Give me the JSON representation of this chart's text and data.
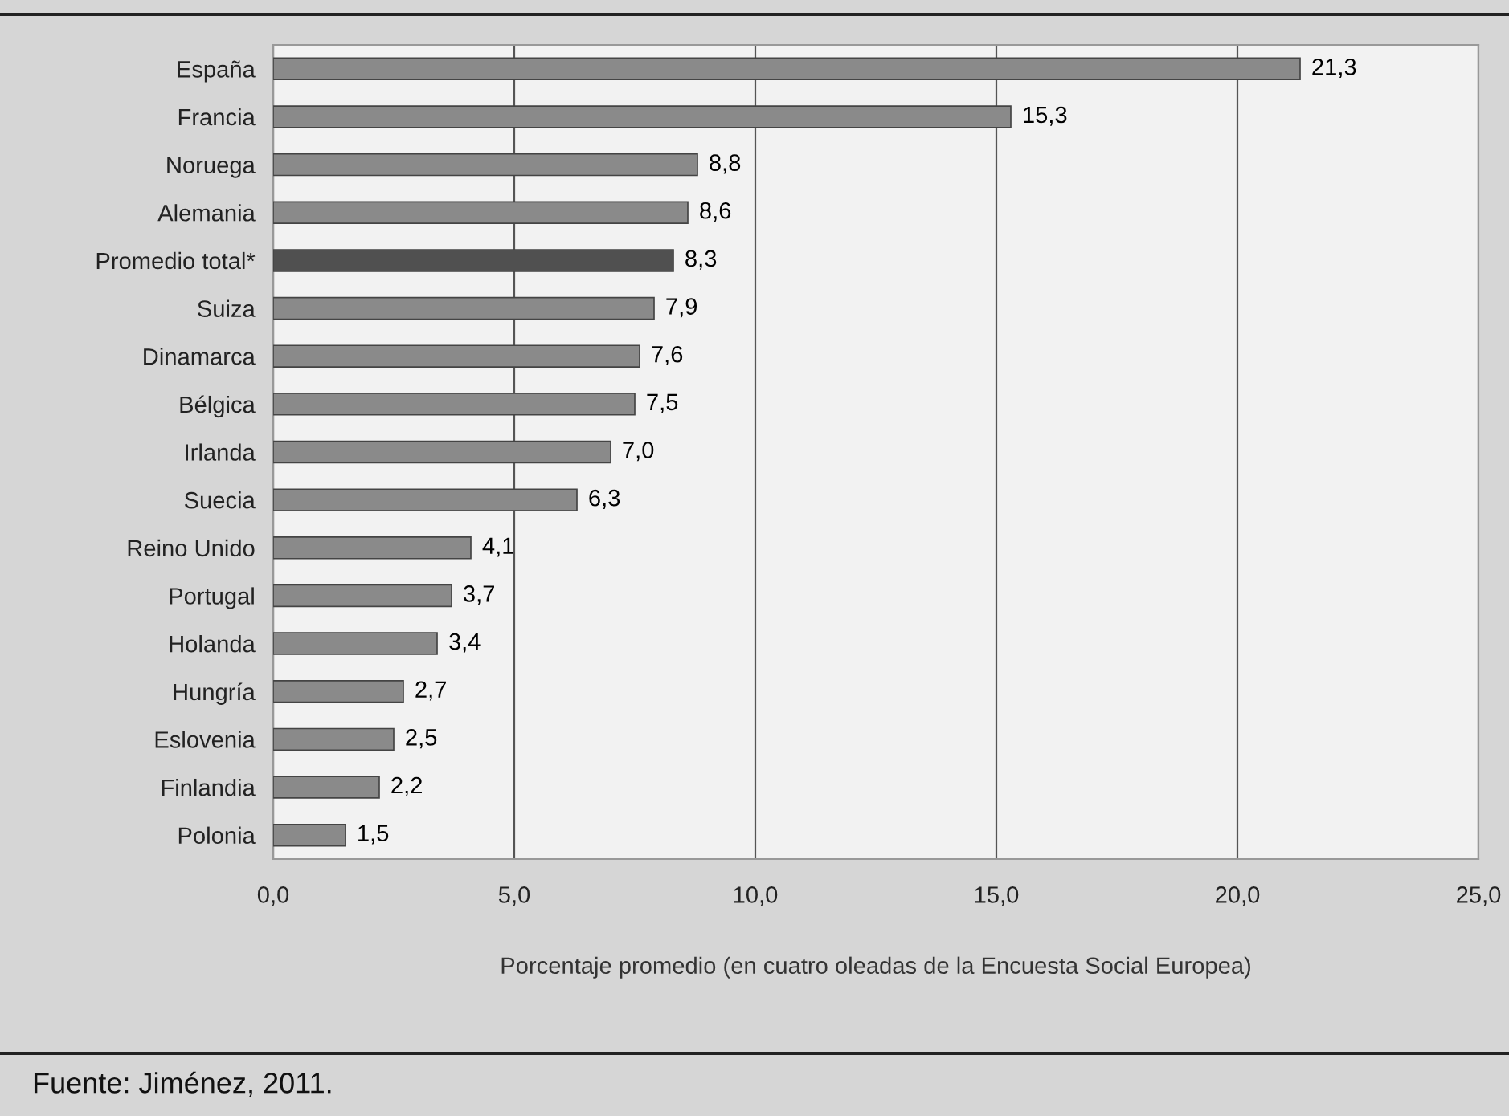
{
  "chart_data": {
    "type": "bar",
    "orientation": "horizontal",
    "categories": [
      "España",
      "Francia",
      "Noruega",
      "Alemania",
      "Promedio total*",
      "Suiza",
      "Dinamarca",
      "Bélgica",
      "Irlanda",
      "Suecia",
      "Reino Unido",
      "Portugal",
      "Holanda",
      "Hungría",
      "Eslovenia",
      "Finlandia",
      "Polonia"
    ],
    "values": [
      21.3,
      15.3,
      8.8,
      8.6,
      8.3,
      7.9,
      7.6,
      7.5,
      7.0,
      6.3,
      4.1,
      3.7,
      3.4,
      2.7,
      2.5,
      2.2,
      1.5
    ],
    "value_labels": [
      "21,3",
      "15,3",
      "8,8",
      "8,6",
      "8,3",
      "7,9",
      "7,6",
      "7,5",
      "7,0",
      "6,3",
      "4,1",
      "3,7",
      "3,4",
      "2,7",
      "2,5",
      "2,2",
      "1,5"
    ],
    "colors": [
      "#8a8a8a",
      "#8a8a8a",
      "#8a8a8a",
      "#8a8a8a",
      "#505050",
      "#8a8a8a",
      "#8a8a8a",
      "#8a8a8a",
      "#8a8a8a",
      "#8a8a8a",
      "#8a8a8a",
      "#8a8a8a",
      "#8a8a8a",
      "#8a8a8a",
      "#8a8a8a",
      "#8a8a8a",
      "#8a8a8a"
    ],
    "xlim": [
      0,
      25
    ],
    "xticks": [
      {
        "value": 0,
        "label": "0,0"
      },
      {
        "value": 5,
        "label": "5,0"
      },
      {
        "value": 10,
        "label": "10,0"
      },
      {
        "value": 15,
        "label": "15,0"
      },
      {
        "value": 20,
        "label": "20,0"
      },
      {
        "value": 25,
        "label": "25,0"
      }
    ],
    "xlabel": "Porcentaje promedio (en cuatro oleadas de la Encuesta Social Europea)",
    "grid": "x",
    "annotations": [
      "Fuente: Jiménez, 2011."
    ]
  }
}
